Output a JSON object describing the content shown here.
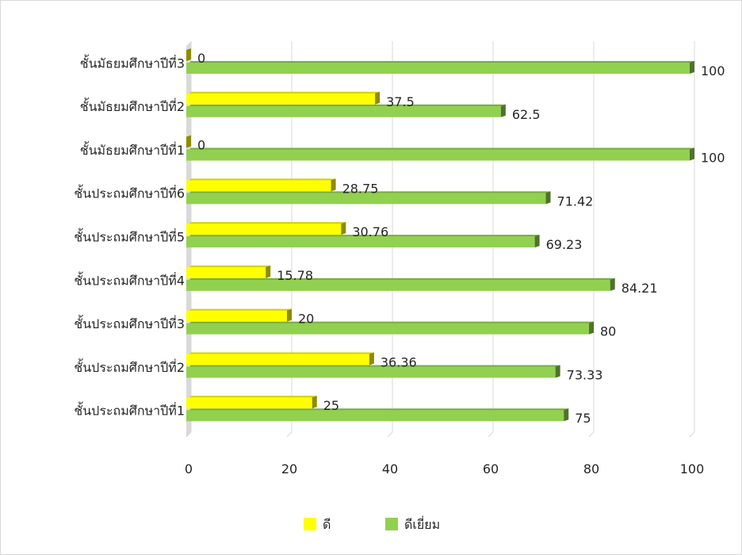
{
  "chart_data": {
    "type": "bar",
    "orientation": "horizontal",
    "style": "3d",
    "categories": [
      "ชั้นประถมศึกษาปีที่1",
      "ชั้นประถมศึกษาปีที่2",
      "ชั้นประถมศึกษาปีที่3",
      "ชั้นประถมศึกษาปีที่4",
      "ชั้นประถมศึกษาปีที่5",
      "ชั้นประถมศึกษาปีที่6",
      "ชั้นมัธยมศึกษาปีที่1",
      "ชั้นมัธยมศึกษาปีที่2",
      "ชั้นมัธยมศึกษาปีที่3"
    ],
    "series": [
      {
        "name": "ดี",
        "color": "#ffff00",
        "values": [
          25,
          36.36,
          20,
          15.78,
          30.76,
          28.75,
          0,
          37.5,
          0
        ]
      },
      {
        "name": "ดีเยี่ยม",
        "color": "#92d050",
        "values": [
          75,
          73.33,
          80,
          84.21,
          69.23,
          71.42,
          100,
          62.5,
          100
        ]
      }
    ],
    "xlim": [
      0,
      100
    ],
    "ticks": [
      "0",
      "20",
      "40",
      "60",
      "80",
      "100"
    ],
    "grid": true,
    "legend_position": "bottom",
    "data_labels": true,
    "title": "",
    "xlabel": "",
    "ylabel": ""
  }
}
